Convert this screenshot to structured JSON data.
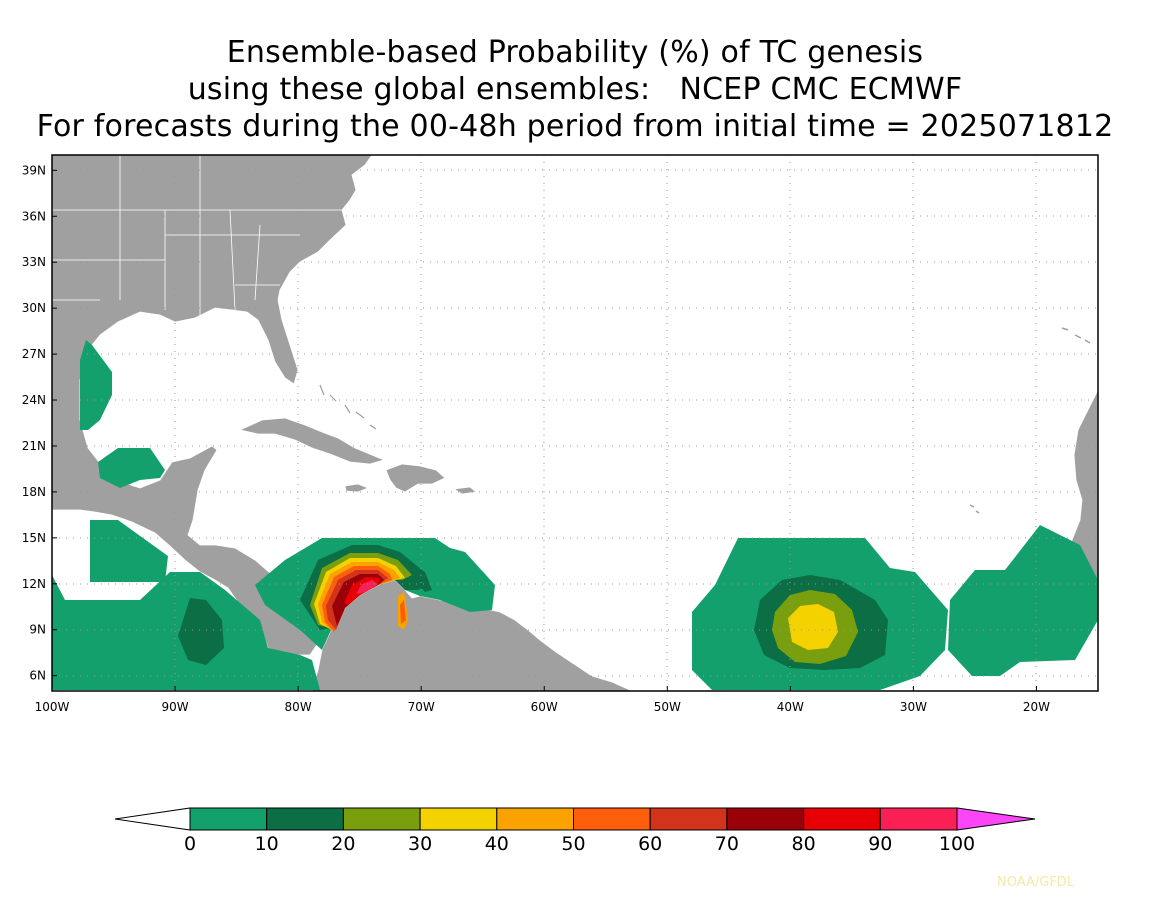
{
  "title": {
    "line1": "Ensemble-based Probability (%) of TC genesis",
    "line2": "using these global ensembles:   NCEP CMC ECMWF",
    "line3": "For forecasts during the 00-48h period from initial time = 2025071812"
  },
  "map": {
    "lon_range": [
      -100,
      -15
    ],
    "lat_range": [
      5,
      40
    ],
    "lat_ticks": [
      "39N",
      "36N",
      "33N",
      "30N",
      "27N",
      "24N",
      "21N",
      "18N",
      "15N",
      "12N",
      "9N",
      "6N"
    ],
    "lat_values": [
      39,
      36,
      33,
      30,
      27,
      24,
      21,
      18,
      15,
      12,
      9,
      6
    ],
    "lon_ticks": [
      "100W",
      "90W",
      "80W",
      "70W",
      "60W",
      "50W",
      "40W",
      "30W",
      "20W"
    ],
    "lon_values": [
      -100,
      -90,
      -80,
      -70,
      -60,
      -50,
      -40,
      -30,
      -20
    ],
    "land_color": "#a0a0a0",
    "ocean_color": "#ffffff",
    "grid": "dotted"
  },
  "colorbar": {
    "levels": [
      0,
      10,
      20,
      30,
      40,
      50,
      60,
      70,
      80,
      90,
      100
    ],
    "labels": [
      "0",
      "10",
      "20",
      "30",
      "40",
      "50",
      "60",
      "70",
      "80",
      "90",
      "100"
    ],
    "colors": [
      "#13a06c",
      "#0b6e45",
      "#7a9f0e",
      "#f4d200",
      "#f9a200",
      "#fc5e0c",
      "#d1331b",
      "#9a0008",
      "#e60006",
      "#fa2056"
    ],
    "under_color": "#ffffff",
    "over_color": "#fa46f7"
  },
  "credit": "NOAA/GFDL"
}
